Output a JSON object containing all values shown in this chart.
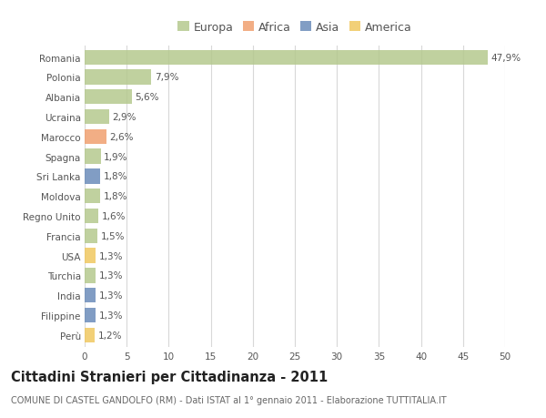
{
  "countries": [
    "Romania",
    "Polonia",
    "Albania",
    "Ucraina",
    "Marocco",
    "Spagna",
    "Sri Lanka",
    "Moldova",
    "Regno Unito",
    "Francia",
    "USA",
    "Turchia",
    "India",
    "Filippine",
    "Perù"
  ],
  "values": [
    47.9,
    7.9,
    5.6,
    2.9,
    2.6,
    1.9,
    1.8,
    1.8,
    1.6,
    1.5,
    1.3,
    1.3,
    1.3,
    1.3,
    1.2
  ],
  "labels": [
    "47,9%",
    "7,9%",
    "5,6%",
    "2,9%",
    "2,6%",
    "1,9%",
    "1,8%",
    "1,8%",
    "1,6%",
    "1,5%",
    "1,3%",
    "1,3%",
    "1,3%",
    "1,3%",
    "1,2%"
  ],
  "continents": [
    "Europa",
    "Europa",
    "Europa",
    "Europa",
    "Africa",
    "Europa",
    "Asia",
    "Europa",
    "Europa",
    "Europa",
    "America",
    "Europa",
    "Asia",
    "Asia",
    "America"
  ],
  "colors": {
    "Europa": "#b5c98e",
    "Africa": "#f0a070",
    "Asia": "#6b8cba",
    "America": "#f0c860"
  },
  "xlim": [
    0,
    50
  ],
  "xticks": [
    0,
    5,
    10,
    15,
    20,
    25,
    30,
    35,
    40,
    45,
    50
  ],
  "title": "Cittadini Stranieri per Cittadinanza - 2011",
  "subtitle": "COMUNE DI CASTEL GANDOLFO (RM) - Dati ISTAT al 1° gennaio 2011 - Elaborazione TUTTITALIA.IT",
  "background_color": "#ffffff",
  "grid_color": "#d8d8d8",
  "bar_height": 0.75,
  "label_fontsize": 7.5,
  "tick_fontsize": 7.5,
  "title_fontsize": 10.5,
  "subtitle_fontsize": 7,
  "legend_fontsize": 9
}
